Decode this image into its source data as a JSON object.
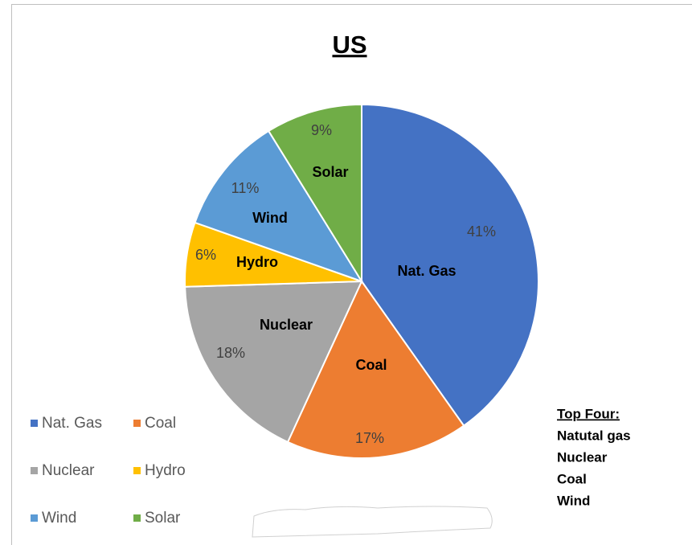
{
  "chart_data": {
    "type": "pie",
    "title": "US",
    "categories": [
      "Nat. Gas",
      "Coal",
      "Nuclear",
      "Hydro",
      "Wind",
      "Solar"
    ],
    "values": [
      41,
      17,
      18,
      6,
      11,
      9
    ],
    "value_labels": [
      "41%",
      "17%",
      "18%",
      "6%",
      "11%",
      "9%"
    ],
    "colors": [
      "#4472c4",
      "#ed7d31",
      "#a5a5a5",
      "#ffc000",
      "#5b9bd5",
      "#70ad47"
    ],
    "legend": "bottom-left",
    "annotations": [
      "Top Four:",
      "Natutal gas",
      "Nuclear",
      "Coal",
      "Wind"
    ]
  }
}
